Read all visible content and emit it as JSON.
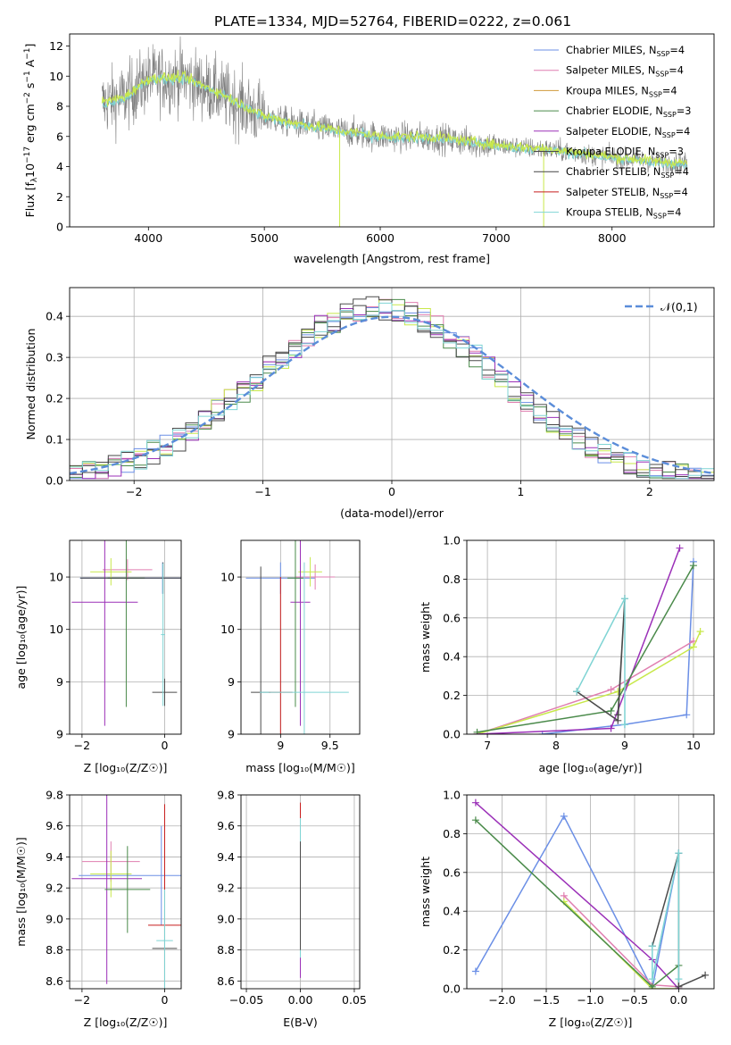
{
  "figure": {
    "title": "PLATE=1334, MJD=52764, FIBERID=0222, z=0.061"
  },
  "colors": [
    "#6b8fe6",
    "#e07fb0",
    "#d19a3a",
    "#4a8a4a",
    "#9b30b8",
    "#4b4b4b",
    "#444444",
    "#c81e1e",
    "#7fd4d4"
  ],
  "extra_colors": {
    "orange": "#e8793a",
    "lime": "#c8e84a",
    "data_gray": "#808080",
    "normal_curve": "#5b8dd9"
  },
  "legend_top": [
    {
      "pre": "Chabrier MILES, N",
      "sub": "SSP",
      "post": "=4"
    },
    {
      "pre": "Salpeter MILES, N",
      "sub": "SSP",
      "post": "=4"
    },
    {
      "pre": "Kroupa MILES, N",
      "sub": "SSP",
      "post": "=4"
    },
    {
      "pre": "Chabrier ELODIE, N",
      "sub": "SSP",
      "post": "=3"
    },
    {
      "pre": "Salpeter ELODIE, N",
      "sub": "SSP",
      "post": "=4"
    },
    {
      "pre": "Kroupa ELODIE, N",
      "sub": "SSP",
      "post": "=3"
    },
    {
      "pre": "Chabrier STELIB, N",
      "sub": "SSP",
      "post": "=4"
    },
    {
      "pre": "Salpeter STELIB, N",
      "sub": "SSP",
      "post": "=4"
    },
    {
      "pre": "Kroupa STELIB, N",
      "sub": "SSP",
      "post": "=4"
    }
  ],
  "chart_data": [
    {
      "id": "spectrum",
      "type": "line",
      "xlabel": "wavelength [Angstrom, rest frame]",
      "ylabel_parts": {
        "pre": "Flux [f",
        "sub1": "λ",
        "mid": "10",
        "sup1": "−17",
        "post": " erg cm",
        "sup2": "−2",
        "mid2": " s",
        "sup3": "−1",
        "mid3": " A",
        "sup4": "−1",
        "end": "]"
      },
      "xlim": [
        3320,
        8880
      ],
      "ylim": [
        0,
        12.8
      ],
      "xticks": [
        4000,
        5000,
        6000,
        7000,
        8000
      ],
      "yticks": [
        0,
        2,
        4,
        6,
        8,
        10,
        12
      ],
      "continuum": {
        "x": [
          3600,
          3800,
          4000,
          4300,
          4600,
          5000,
          5300,
          5600,
          6000,
          6500,
          7000,
          7500,
          8000,
          8400,
          8650
        ],
        "y": [
          8.2,
          8.6,
          9.8,
          9.9,
          8.9,
          7.3,
          6.8,
          6.4,
          6.0,
          5.9,
          5.4,
          5.1,
          4.6,
          4.3,
          4.2
        ]
      },
      "grid": false,
      "legend_position": "upper right"
    },
    {
      "id": "residual-histogram",
      "type": "histogram",
      "xlabel": "(data-model)/error",
      "ylabel": "Normed distribution",
      "xlim": [
        -2.5,
        2.5
      ],
      "ylim": [
        0,
        0.47
      ],
      "xticks": [
        -2,
        -1,
        0,
        1,
        2
      ],
      "xtick_labels": [
        "−2",
        "−1",
        "0",
        "1",
        "2"
      ],
      "yticks": [
        0.0,
        0.1,
        0.2,
        0.3,
        0.4
      ],
      "bin_width": 0.1,
      "normal_curve": {
        "label": "𝒩(0,1)",
        "mean": 0.0,
        "sigma": 1.0,
        "style": "dashed"
      },
      "grid": true,
      "legend_position": "upper right"
    },
    {
      "id": "age-vs-Z",
      "type": "errorbar",
      "xlabel": "Z [log₁₀(Z/Z☉)]",
      "ylabel": "age  [log₁₀(age/yr)]",
      "xlim": [
        -2.3,
        0.4
      ],
      "ylim": [
        8.5,
        10.35
      ],
      "xticks": [
        -2,
        0
      ],
      "xtick_labels": [
        "−2",
        "0"
      ],
      "yticks": [
        8.5,
        9.0,
        9.5,
        10.0
      ],
      "points": [
        {
          "x": -0.05,
          "y": 9.99,
          "xerr": 2.0,
          "yerr": 0.15,
          "c": 0
        },
        {
          "x": -0.9,
          "y": 10.07,
          "xerr": 0.6,
          "yerr": 0.1,
          "c": 1
        },
        {
          "x": -1.3,
          "y": 10.05,
          "xerr": 0.5,
          "yerr": 0.13,
          "c": 10
        },
        {
          "x": -1.45,
          "y": 9.76,
          "xerr": 0.8,
          "yerr": 1.18,
          "c": 4
        },
        {
          "x": -0.87,
          "y": 9.99,
          "xerr": 1.0,
          "yerr": 0.26,
          "c": 11
        },
        {
          "x": -0.93,
          "y": 9.99,
          "xerr": 0.45,
          "yerr": 1.23,
          "c": 3
        },
        {
          "x": 0.0,
          "y": 8.9,
          "xerr": 0.3,
          "yerr": 0.13,
          "c": 5
        },
        {
          "x": -0.04,
          "y": 9.99,
          "xerr": 2.0,
          "yerr": 0.15,
          "c": 6
        },
        {
          "x": -0.04,
          "y": 9.45,
          "xerr": 0.05,
          "yerr": 0.68,
          "c": 8
        }
      ]
    },
    {
      "id": "age-vs-mass",
      "type": "errorbar",
      "xlabel": "mass [log₁₀(M/M☉)]",
      "ylabel": "",
      "xlim": [
        8.6,
        9.8
      ],
      "ylim": [
        8.5,
        10.35
      ],
      "xticks": [
        9.0,
        9.5
      ],
      "yticks": [
        8.5,
        9.0,
        9.5,
        10.0
      ],
      "points": [
        {
          "x": 9.0,
          "y": 9.99,
          "xerr": 0.35,
          "yerr": 0.15,
          "c": 0
        },
        {
          "x": 9.35,
          "y": 10.0,
          "xerr": 0.2,
          "yerr": 0.12,
          "c": 1
        },
        {
          "x": 9.3,
          "y": 10.05,
          "xerr": 0.12,
          "yerr": 0.14,
          "c": 10
        },
        {
          "x": 9.2,
          "y": 9.76,
          "xerr": 0.1,
          "yerr": 1.18,
          "c": 4
        },
        {
          "x": 9.17,
          "y": 9.99,
          "xerr": 0.1,
          "yerr": 0.26,
          "c": 11
        },
        {
          "x": 9.15,
          "y": 9.99,
          "xerr": 0.08,
          "yerr": 1.23,
          "c": 3
        },
        {
          "x": 8.8,
          "y": 8.9,
          "xerr": 0.1,
          "yerr": 1.2,
          "c": 5
        },
        {
          "x": 9.0,
          "y": 8.9,
          "xerr": 0.12,
          "yerr": 1.1,
          "c": 7
        },
        {
          "x": 9.24,
          "y": 8.9,
          "xerr": 0.45,
          "yerr": 1.24,
          "c": 8
        }
      ]
    },
    {
      "id": "mass-weight-vs-age",
      "type": "line",
      "xlabel": "age  [log₁₀(age/yr)]",
      "ylabel": "mass weight",
      "xlim": [
        6.7,
        10.3
      ],
      "ylim": [
        0,
        1.0
      ],
      "xticks": [
        7,
        8,
        9,
        10
      ],
      "yticks": [
        0.0,
        0.2,
        0.4,
        0.6,
        0.8,
        1.0
      ],
      "series": [
        {
          "c": 0,
          "x": [
            7.8,
            9.0,
            9.9,
            10.0
          ],
          "y": [
            0.0,
            0.05,
            0.1,
            0.89
          ]
        },
        {
          "c": 1,
          "x": [
            6.85,
            8.8,
            10.0
          ],
          "y": [
            0.0,
            0.23,
            0.48
          ]
        },
        {
          "c": 10,
          "x": [
            6.85,
            8.9,
            10.0,
            10.1
          ],
          "y": [
            0.0,
            0.22,
            0.45,
            0.53
          ]
        },
        {
          "c": 4,
          "x": [
            6.85,
            8.8,
            9.8
          ],
          "y": [
            0.0,
            0.03,
            0.96
          ]
        },
        {
          "c": 11,
          "x": [
            6.85,
            8.9,
            10.0
          ],
          "y": [
            0.01,
            0.12,
            0.86
          ]
        },
        {
          "c": 3,
          "x": [
            6.85,
            8.8,
            10.0
          ],
          "y": [
            0.01,
            0.12,
            0.87
          ]
        },
        {
          "c": 5,
          "x": [
            8.3,
            8.9,
            9.0,
            8.9
          ],
          "y": [
            0.22,
            0.07,
            0.7,
            0.1
          ]
        },
        {
          "c": 8,
          "x": [
            8.3,
            9.0,
            9.0,
            9.0
          ],
          "y": [
            0.22,
            0.7,
            0.05,
            0.05
          ]
        }
      ],
      "grid": true
    },
    {
      "id": "mass-vs-Z",
      "type": "errorbar",
      "xlabel": "Z [log₁₀(Z/Z☉)]",
      "ylabel": "mass [log₁₀(M/M☉)]",
      "xlim": [
        -2.3,
        0.4
      ],
      "ylim": [
        8.55,
        9.8
      ],
      "xticks": [
        -2,
        0
      ],
      "xtick_labels": [
        "−2",
        "0"
      ],
      "yticks": [
        8.6,
        8.8,
        9.0,
        9.2,
        9.4,
        9.6,
        9.8
      ],
      "points": [
        {
          "x": -1.3,
          "y": 9.37,
          "xerr": 0.7,
          "yerr": 0.13,
          "c": 1
        },
        {
          "x": -0.08,
          "y": 9.28,
          "xerr": 2.0,
          "yerr": 0.32,
          "c": 0
        },
        {
          "x": -1.3,
          "y": 9.29,
          "xerr": 0.5,
          "yerr": 0.15,
          "c": 10
        },
        {
          "x": -1.4,
          "y": 9.26,
          "xerr": 0.85,
          "yerr": 0.68,
          "c": 4
        },
        {
          "x": -0.9,
          "y": 9.19,
          "xerr": 0.55,
          "yerr": 0.28,
          "c": 3
        },
        {
          "x": -0.9,
          "y": 9.16,
          "xerr": 1.0,
          "yerr": 0.55,
          "c": 11
        },
        {
          "x": 0.0,
          "y": 8.96,
          "xerr": 0.4,
          "yerr": 0.78,
          "c": 7
        },
        {
          "x": 0.0,
          "y": 8.81,
          "xerr": 0.3,
          "yerr": 0.25,
          "c": 5
        },
        {
          "x": 0.0,
          "y": 8.86,
          "xerr": 0.2,
          "yerr": 0.33,
          "c": 8
        }
      ]
    },
    {
      "id": "mass-vs-EBV",
      "type": "errorbar",
      "xlabel": "E(B-V)",
      "ylabel": "",
      "xlim": [
        -0.055,
        0.055
      ],
      "ylim": [
        8.55,
        9.8
      ],
      "xticks": [
        -0.05,
        0.0,
        0.05
      ],
      "xtick_labels": [
        "−0.05",
        "0.00",
        "0.05"
      ],
      "yticks": [
        8.6,
        8.8,
        9.0,
        9.2,
        9.4,
        9.6,
        9.8
      ],
      "points": [
        {
          "x": 0.0,
          "y": 9.2,
          "xerr": 0.0,
          "yerr": 0.55,
          "c": 7
        },
        {
          "x": 0.0,
          "y": 9.15,
          "xerr": 0.0,
          "yerr": 0.5,
          "c": 11
        },
        {
          "x": 0.0,
          "y": 9.1,
          "xerr": 0.0,
          "yerr": 0.48,
          "c": 4
        },
        {
          "x": 0.0,
          "y": 9.2,
          "xerr": 0.0,
          "yerr": 0.45,
          "c": 8
        },
        {
          "x": 0.0,
          "y": 9.15,
          "xerr": 0.0,
          "yerr": 0.35,
          "c": 5
        }
      ]
    },
    {
      "id": "mass-weight-vs-Z",
      "type": "line",
      "xlabel": "Z [log₁₀(Z/Z☉)]",
      "ylabel": "mass weight",
      "xlim": [
        -2.4,
        0.4
      ],
      "ylim": [
        0,
        1.0
      ],
      "xticks": [
        -2.0,
        -1.5,
        -1.0,
        -0.5,
        0.0
      ],
      "xtick_labels": [
        "−2.0",
        "−1.5",
        "−1.0",
        "−0.5",
        "0.0"
      ],
      "yticks": [
        0.0,
        0.2,
        0.4,
        0.6,
        0.8,
        1.0
      ],
      "series": [
        {
          "c": 0,
          "x": [
            -2.3,
            -1.3,
            -0.3,
            0.0
          ],
          "y": [
            0.09,
            0.89,
            0.0,
            0.7
          ]
        },
        {
          "c": 1,
          "x": [
            -1.3,
            -0.3,
            0.0
          ],
          "y": [
            0.48,
            0.02,
            0.01
          ]
        },
        {
          "c": 10,
          "x": [
            -1.3,
            -0.3,
            0.0
          ],
          "y": [
            0.45,
            0.0,
            0.0
          ]
        },
        {
          "c": 4,
          "x": [
            -2.3,
            -0.3,
            0.0
          ],
          "y": [
            0.96,
            0.15,
            0.0
          ]
        },
        {
          "c": 11,
          "x": [
            -2.3,
            -0.3,
            0.0
          ],
          "y": [
            0.86,
            0.03,
            0.12
          ]
        },
        {
          "c": 3,
          "x": [
            -2.3,
            -0.3,
            0.0
          ],
          "y": [
            0.87,
            0.01,
            0.12
          ]
        },
        {
          "c": 5,
          "x": [
            -0.3,
            0.0,
            0.0,
            0.3
          ],
          "y": [
            0.22,
            0.7,
            0.01,
            0.07
          ]
        },
        {
          "c": 8,
          "x": [
            -0.3,
            -0.3,
            0.0,
            0.0
          ],
          "y": [
            0.22,
            0.05,
            0.7,
            0.05
          ]
        }
      ],
      "grid": true
    }
  ]
}
